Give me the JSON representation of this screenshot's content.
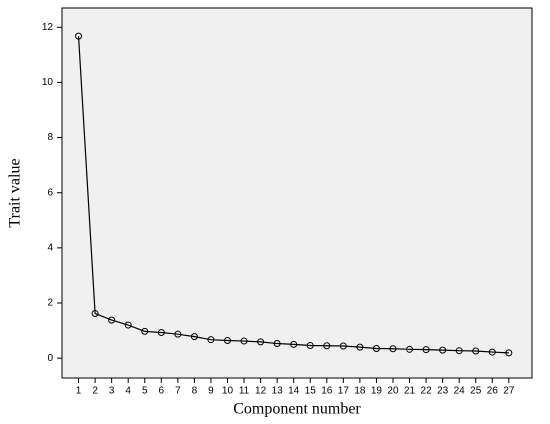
{
  "chart_data": {
    "type": "line",
    "x_label": "Component number",
    "y_label": "Trait value",
    "x": [
      1,
      2,
      3,
      4,
      5,
      6,
      7,
      8,
      9,
      10,
      11,
      12,
      13,
      14,
      15,
      16,
      17,
      18,
      19,
      20,
      21,
      22,
      23,
      24,
      25,
      26,
      27
    ],
    "values": [
      11.68,
      1.62,
      1.38,
      1.2,
      0.97,
      0.93,
      0.87,
      0.78,
      0.67,
      0.64,
      0.62,
      0.59,
      0.53,
      0.5,
      0.46,
      0.45,
      0.44,
      0.4,
      0.35,
      0.34,
      0.32,
      0.31,
      0.29,
      0.27,
      0.26,
      0.22,
      0.19
    ],
    "color": "#000000",
    "marker": "open-circle",
    "xlim": [
      0,
      28.4
    ],
    "ylim": [
      -0.72,
      12.7
    ],
    "xticks": [
      1,
      2,
      3,
      4,
      5,
      6,
      7,
      8,
      9,
      10,
      11,
      12,
      13,
      14,
      15,
      16,
      17,
      18,
      19,
      20,
      21,
      22,
      23,
      24,
      25,
      26,
      27
    ],
    "yticks": [
      0,
      2,
      4,
      6,
      8,
      10,
      12
    ],
    "grid": false
  }
}
